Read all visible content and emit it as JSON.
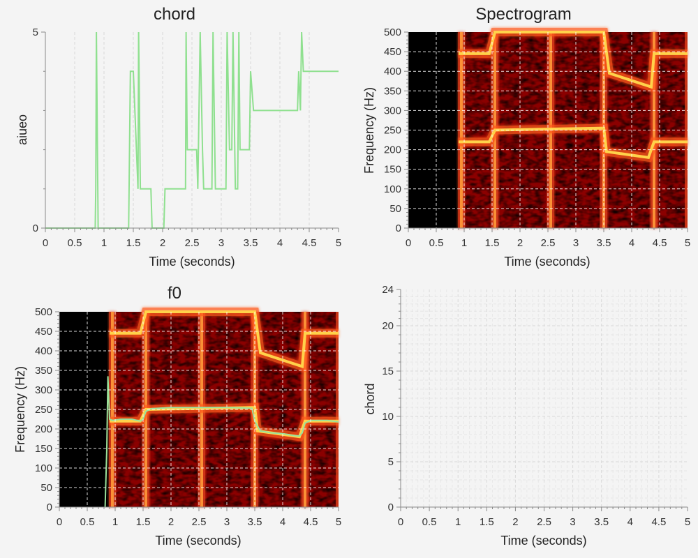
{
  "colors": {
    "line": "#8fe08f",
    "background": "#f4f4f4",
    "spectrogram_dark": "#000000",
    "spectrogram_mid": "#8b0000",
    "spectrogram_hot": "#ffd24a",
    "f0_line": "#9be29b"
  },
  "chart_data": [
    {
      "type": "line",
      "title": "chord",
      "xlabel": "Time (seconds)",
      "ylabel": "aiueo",
      "xlim": [
        0,
        5
      ],
      "ylim": [
        0,
        5
      ],
      "xticks": [
        "0",
        "0.5",
        "1",
        "1.5",
        "2",
        "2.5",
        "3",
        "3.5",
        "4",
        "4.5",
        "5"
      ],
      "yticks": [
        "0",
        "5"
      ],
      "grid": true,
      "series": [
        {
          "x": [
            0,
            0.85,
            0.86,
            0.87,
            0.9,
            1.42,
            1.45,
            1.5,
            1.58,
            1.59,
            1.62,
            1.8,
            1.82,
            2.02,
            2.04,
            2.39,
            2.4,
            2.42,
            2.45,
            2.48,
            2.58,
            2.6,
            2.64,
            2.68,
            2.7,
            2.75,
            2.84,
            2.86,
            2.9,
            2.95,
            3.08,
            3.1,
            3.14,
            3.18,
            3.2,
            3.24,
            3.28,
            3.3,
            3.32,
            3.36,
            3.48,
            3.5,
            3.55,
            3.6,
            4.3,
            4.32,
            4.35,
            4.37,
            4.4,
            4.45,
            5
          ],
          "y": [
            0,
            0,
            1,
            5,
            0,
            0,
            4,
            4,
            1,
            5,
            1,
            1,
            0,
            0,
            1,
            1,
            5,
            2,
            2,
            2,
            2,
            1,
            5,
            2,
            1,
            1,
            1,
            5,
            1,
            1,
            1,
            5,
            2,
            2,
            5,
            1,
            1,
            5,
            2,
            2,
            2,
            4,
            3,
            3,
            3,
            4,
            3,
            5,
            4,
            4,
            4
          ]
        }
      ]
    },
    {
      "type": "heatmap",
      "title": "Spectrogram",
      "xlabel": "Time (seconds)",
      "ylabel": "Frequency (Hz)",
      "xlim": [
        0,
        5
      ],
      "ylim": [
        0,
        500
      ],
      "xticks": [
        "0",
        "0.5",
        "1",
        "1.5",
        "2",
        "2.5",
        "3",
        "3.5",
        "4",
        "4.5",
        "5"
      ],
      "yticks": [
        "0",
        "50",
        "100",
        "150",
        "200",
        "250",
        "300",
        "350",
        "400",
        "450",
        "500"
      ],
      "grid": true,
      "silence_end": 0.9,
      "onsets": [
        0.95,
        1.55,
        2.55,
        3.5,
        4.4
      ],
      "harmonics": [
        {
          "x": [
            0.9,
            1.45,
            1.55,
            3.5,
            3.55,
            4.3,
            4.4,
            5
          ],
          "y": [
            220,
            220,
            250,
            255,
            195,
            180,
            220,
            220
          ]
        },
        {
          "x": [
            0.9,
            1.45,
            1.55,
            3.5,
            3.6,
            4.35,
            4.4,
            5
          ],
          "y": [
            445,
            445,
            500,
            500,
            395,
            360,
            445,
            445
          ]
        }
      ]
    },
    {
      "type": "heatmap",
      "title": "f0",
      "xlabel": "Time (seconds)",
      "ylabel": "Frequency (Hz)",
      "xlim": [
        0,
        5
      ],
      "ylim": [
        0,
        500
      ],
      "xticks": [
        "0",
        "0.5",
        "1",
        "1.5",
        "2",
        "2.5",
        "3",
        "3.5",
        "4",
        "4.5",
        "5"
      ],
      "yticks": [
        "0",
        "50",
        "100",
        "150",
        "200",
        "250",
        "300",
        "350",
        "400",
        "450",
        "500"
      ],
      "grid": true,
      "f0": {
        "x": [
          0.82,
          0.85,
          0.87,
          0.9,
          0.95,
          1.1,
          1.3,
          1.45,
          1.5,
          1.55,
          1.65,
          2.0,
          2.5,
          3.0,
          3.45,
          3.5,
          3.6,
          3.8,
          4.0,
          4.2,
          4.3,
          4.35,
          4.4,
          4.5,
          4.8,
          5.0
        ],
        "y": [
          0,
          150,
          335,
          225,
          222,
          225,
          225,
          220,
          225,
          245,
          252,
          255,
          255,
          255,
          253,
          220,
          195,
          190,
          188,
          183,
          182,
          190,
          215,
          222,
          222,
          218
        ]
      },
      "harmonics": [
        {
          "x": [
            0.9,
            1.45,
            1.55,
            3.5,
            3.55,
            4.3,
            4.4,
            5
          ],
          "y": [
            220,
            220,
            250,
            255,
            195,
            180,
            220,
            220
          ]
        },
        {
          "x": [
            0.9,
            1.45,
            1.55,
            3.5,
            3.6,
            4.35,
            4.4,
            5
          ],
          "y": [
            445,
            445,
            500,
            500,
            395,
            360,
            445,
            445
          ]
        }
      ],
      "silence_end": 0.9,
      "onsets": [
        0.95,
        1.55,
        2.55,
        3.5,
        4.4
      ]
    },
    {
      "type": "line",
      "title": "",
      "xlabel": "Time (seconds)",
      "ylabel": "chord",
      "xlim": [
        0,
        5
      ],
      "ylim": [
        0,
        24
      ],
      "xticks": [
        "0",
        "0.5",
        "1",
        "1.5",
        "2",
        "2.5",
        "3",
        "3.5",
        "4",
        "4.5",
        "5"
      ],
      "yticks": [
        "0",
        "5",
        "10",
        "15",
        "20",
        "24"
      ],
      "grid": true,
      "series": []
    }
  ]
}
